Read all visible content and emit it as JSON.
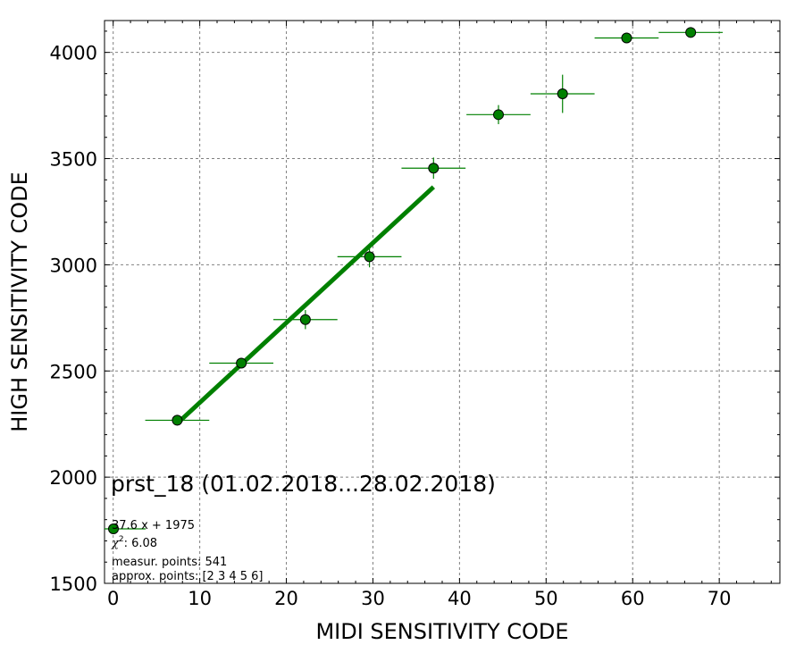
{
  "chart_data": {
    "type": "scatter",
    "title": "prst_18 (01.02.2018...28.02.2018)",
    "xlabel": "MIDI SENSITIVITY CODE",
    "ylabel": "HIGH SENSITIVITY CODE",
    "xlim": [
      -1,
      77
    ],
    "ylim": [
      1500,
      4150
    ],
    "xticks": [
      0,
      10,
      20,
      30,
      40,
      50,
      60,
      70
    ],
    "yticks": [
      1500,
      2000,
      2500,
      3000,
      3500,
      4000
    ],
    "grid": true,
    "points": [
      {
        "x": 7.4,
        "y": 2268,
        "xerr": 3.7,
        "yerr": 25
      },
      {
        "x": 14.8,
        "y": 2537,
        "xerr": 3.7,
        "yerr": 25
      },
      {
        "x": 22.2,
        "y": 2742,
        "xerr": 3.7,
        "yerr": 45
      },
      {
        "x": 29.6,
        "y": 3038,
        "xerr": 3.7,
        "yerr": 50
      },
      {
        "x": 37.0,
        "y": 3455,
        "xerr": 3.7,
        "yerr": 50
      },
      {
        "x": 44.5,
        "y": 3707,
        "xerr": 3.7,
        "yerr": 45
      },
      {
        "x": 51.9,
        "y": 3805,
        "xerr": 3.7,
        "yerr": 90
      },
      {
        "x": 59.3,
        "y": 4068,
        "xerr": 3.7,
        "yerr": 0
      },
      {
        "x": 66.7,
        "y": 4094,
        "xerr": 3.7,
        "yerr": 0
      }
    ],
    "fit": {
      "slope": 37.6,
      "intercept": 1975,
      "x_range": [
        7.4,
        37.0
      ]
    },
    "colors": {
      "marker": "#008000",
      "errorbar": "#008000",
      "fit_line": "#008000",
      "grid": "#808080"
    },
    "legend": {
      "position": "lower-left",
      "fit_label": "37.6 x + 1975",
      "chi2_label": ": 6.08",
      "measured_label": "measur. points: 541",
      "approx_label": "approx. points: [2 3 4 5 6]"
    }
  }
}
